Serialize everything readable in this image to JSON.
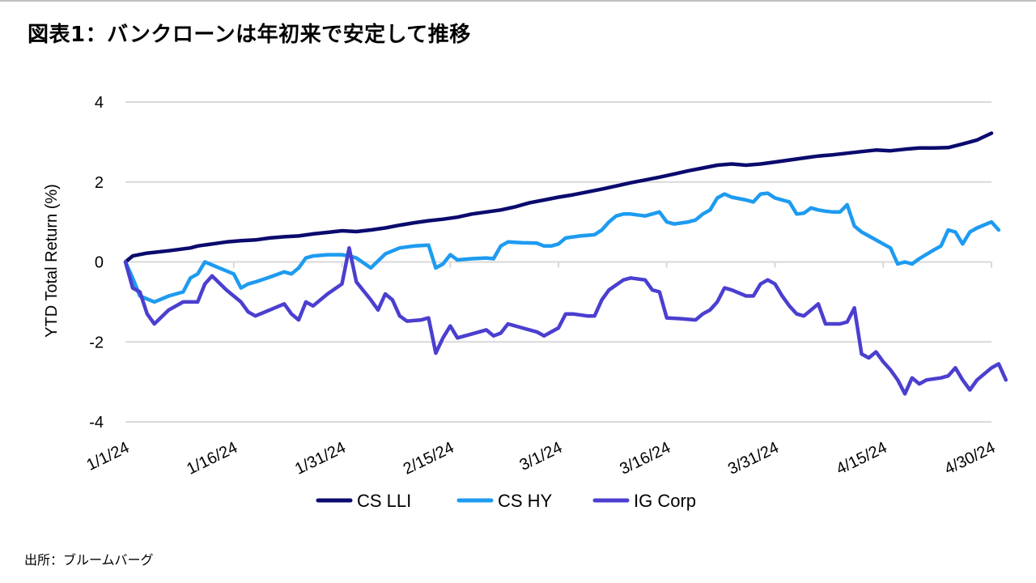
{
  "title": "図表1：バンクローンは年初来で安定して推移",
  "source": "出所：ブルームバーグ",
  "chart_data": {
    "type": "line",
    "ylabel": "YTD Total Return (%)",
    "xlabel": "",
    "ylim": [
      -4,
      4
    ],
    "yticks": [
      -4,
      -2,
      0,
      2,
      4
    ],
    "xlim": [
      0,
      120
    ],
    "xticks": [
      {
        "x": 0,
        "label": "1/1/24"
      },
      {
        "x": 15,
        "label": "1/16/24"
      },
      {
        "x": 30,
        "label": "1/31/24"
      },
      {
        "x": 45,
        "label": "2/15/24"
      },
      {
        "x": 60,
        "label": "3/1/24"
      },
      {
        "x": 75,
        "label": "3/16/24"
      },
      {
        "x": 90,
        "label": "3/31/24"
      },
      {
        "x": 105,
        "label": "4/15/24"
      },
      {
        "x": 120,
        "label": "4/30/24"
      }
    ],
    "grid": true,
    "legend_position": "bottom",
    "series": [
      {
        "name": "CS LLI",
        "color": "#0a0a6e",
        "points": [
          [
            0,
            0
          ],
          [
            1,
            0.15
          ],
          [
            3,
            0.22
          ],
          [
            6,
            0.28
          ],
          [
            9,
            0.35
          ],
          [
            10,
            0.4
          ],
          [
            12,
            0.45
          ],
          [
            14,
            0.5
          ],
          [
            16,
            0.53
          ],
          [
            18,
            0.55
          ],
          [
            20,
            0.6
          ],
          [
            22,
            0.63
          ],
          [
            24,
            0.65
          ],
          [
            26,
            0.7
          ],
          [
            28,
            0.74
          ],
          [
            30,
            0.78
          ],
          [
            32,
            0.76
          ],
          [
            34,
            0.8
          ],
          [
            36,
            0.85
          ],
          [
            38,
            0.92
          ],
          [
            40,
            0.98
          ],
          [
            42,
            1.03
          ],
          [
            44,
            1.07
          ],
          [
            46,
            1.12
          ],
          [
            48,
            1.2
          ],
          [
            50,
            1.25
          ],
          [
            52,
            1.3
          ],
          [
            54,
            1.38
          ],
          [
            56,
            1.48
          ],
          [
            58,
            1.55
          ],
          [
            60,
            1.62
          ],
          [
            62,
            1.68
          ],
          [
            64,
            1.75
          ],
          [
            66,
            1.82
          ],
          [
            68,
            1.9
          ],
          [
            70,
            1.98
          ],
          [
            72,
            2.05
          ],
          [
            74,
            2.12
          ],
          [
            76,
            2.2
          ],
          [
            78,
            2.28
          ],
          [
            80,
            2.35
          ],
          [
            82,
            2.42
          ],
          [
            84,
            2.45
          ],
          [
            86,
            2.42
          ],
          [
            88,
            2.45
          ],
          [
            90,
            2.5
          ],
          [
            92,
            2.55
          ],
          [
            94,
            2.6
          ],
          [
            96,
            2.65
          ],
          [
            98,
            2.68
          ],
          [
            100,
            2.72
          ],
          [
            102,
            2.76
          ],
          [
            104,
            2.8
          ],
          [
            106,
            2.78
          ],
          [
            108,
            2.82
          ],
          [
            110,
            2.85
          ],
          [
            112,
            2.85
          ],
          [
            114,
            2.86
          ],
          [
            116,
            2.95
          ],
          [
            118,
            3.05
          ],
          [
            120,
            3.22
          ]
        ]
      },
      {
        "name": "CS HY",
        "color": "#1e9bf0",
        "points": [
          [
            0,
            0
          ],
          [
            1,
            -0.4
          ],
          [
            2,
            -0.85
          ],
          [
            4,
            -1.0
          ],
          [
            6,
            -0.85
          ],
          [
            8,
            -0.75
          ],
          [
            9,
            -0.4
          ],
          [
            10,
            -0.3
          ],
          [
            11,
            0.0
          ],
          [
            13,
            -0.15
          ],
          [
            15,
            -0.3
          ],
          [
            16,
            -0.65
          ],
          [
            17,
            -0.55
          ],
          [
            18,
            -0.5
          ],
          [
            20,
            -0.38
          ],
          [
            22,
            -0.25
          ],
          [
            23,
            -0.3
          ],
          [
            24,
            -0.15
          ],
          [
            25,
            0.1
          ],
          [
            26,
            0.15
          ],
          [
            28,
            0.18
          ],
          [
            30,
            0.18
          ],
          [
            31,
            0.15
          ],
          [
            32,
            0.1
          ],
          [
            34,
            -0.15
          ],
          [
            36,
            0.2
          ],
          [
            38,
            0.35
          ],
          [
            40,
            0.4
          ],
          [
            42,
            0.42
          ],
          [
            43,
            -0.15
          ],
          [
            44,
            -0.05
          ],
          [
            45,
            0.18
          ],
          [
            46,
            0.05
          ],
          [
            48,
            0.08
          ],
          [
            50,
            0.1
          ],
          [
            51,
            0.08
          ],
          [
            52,
            0.4
          ],
          [
            53,
            0.5
          ],
          [
            55,
            0.48
          ],
          [
            57,
            0.47
          ],
          [
            58,
            0.4
          ],
          [
            59,
            0.4
          ],
          [
            60,
            0.45
          ],
          [
            61,
            0.6
          ],
          [
            63,
            0.65
          ],
          [
            65,
            0.68
          ],
          [
            66,
            0.8
          ],
          [
            67,
            1.0
          ],
          [
            68,
            1.15
          ],
          [
            69,
            1.2
          ],
          [
            70,
            1.2
          ],
          [
            72,
            1.15
          ],
          [
            74,
            1.25
          ],
          [
            75,
            1.0
          ],
          [
            76,
            0.95
          ],
          [
            78,
            1.0
          ],
          [
            79,
            1.05
          ],
          [
            80,
            1.2
          ],
          [
            81,
            1.3
          ],
          [
            82,
            1.6
          ],
          [
            83,
            1.7
          ],
          [
            84,
            1.62
          ],
          [
            86,
            1.55
          ],
          [
            87,
            1.5
          ],
          [
            88,
            1.7
          ],
          [
            89,
            1.72
          ],
          [
            90,
            1.6
          ],
          [
            92,
            1.5
          ],
          [
            93,
            1.2
          ],
          [
            94,
            1.22
          ],
          [
            95,
            1.35
          ],
          [
            96,
            1.3
          ],
          [
            97,
            1.27
          ],
          [
            98,
            1.25
          ],
          [
            99,
            1.25
          ],
          [
            100,
            1.43
          ],
          [
            101,
            0.9
          ],
          [
            102,
            0.75
          ],
          [
            103,
            0.65
          ],
          [
            105,
            0.45
          ],
          [
            106,
            0.35
          ],
          [
            107,
            -0.05
          ],
          [
            108,
            0.0
          ],
          [
            109,
            -0.05
          ],
          [
            110,
            0.08
          ],
          [
            112,
            0.3
          ],
          [
            113,
            0.4
          ],
          [
            114,
            0.8
          ],
          [
            115,
            0.75
          ],
          [
            116,
            0.45
          ],
          [
            117,
            0.75
          ],
          [
            118,
            0.85
          ],
          [
            120,
            1.0
          ],
          [
            121,
            0.8
          ]
        ]
      },
      {
        "name": "IG Corp",
        "color": "#4b3fd0",
        "points": [
          [
            0,
            0
          ],
          [
            1,
            -0.65
          ],
          [
            2,
            -0.75
          ],
          [
            3,
            -1.3
          ],
          [
            4,
            -1.55
          ],
          [
            6,
            -1.2
          ],
          [
            8,
            -1.0
          ],
          [
            10,
            -1.0
          ],
          [
            11,
            -0.55
          ],
          [
            12,
            -0.35
          ],
          [
            14,
            -0.7
          ],
          [
            16,
            -1.0
          ],
          [
            17,
            -1.25
          ],
          [
            18,
            -1.35
          ],
          [
            20,
            -1.2
          ],
          [
            22,
            -1.05
          ],
          [
            23,
            -1.3
          ],
          [
            24,
            -1.45
          ],
          [
            25,
            -1.0
          ],
          [
            26,
            -1.1
          ],
          [
            28,
            -0.8
          ],
          [
            30,
            -0.55
          ],
          [
            31,
            0.35
          ],
          [
            32,
            -0.5
          ],
          [
            34,
            -0.95
          ],
          [
            35,
            -1.2
          ],
          [
            36,
            -0.8
          ],
          [
            37,
            -0.95
          ],
          [
            38,
            -1.35
          ],
          [
            39,
            -1.48
          ],
          [
            41,
            -1.45
          ],
          [
            42,
            -1.4
          ],
          [
            43,
            -2.28
          ],
          [
            44,
            -1.9
          ],
          [
            45,
            -1.6
          ],
          [
            46,
            -1.9
          ],
          [
            48,
            -1.8
          ],
          [
            50,
            -1.7
          ],
          [
            51,
            -1.85
          ],
          [
            52,
            -1.78
          ],
          [
            53,
            -1.55
          ],
          [
            55,
            -1.65
          ],
          [
            57,
            -1.75
          ],
          [
            58,
            -1.85
          ],
          [
            59,
            -1.75
          ],
          [
            60,
            -1.65
          ],
          [
            61,
            -1.3
          ],
          [
            62,
            -1.3
          ],
          [
            64,
            -1.35
          ],
          [
            65,
            -1.35
          ],
          [
            66,
            -0.95
          ],
          [
            67,
            -0.7
          ],
          [
            69,
            -0.45
          ],
          [
            70,
            -0.4
          ],
          [
            72,
            -0.45
          ],
          [
            73,
            -0.7
          ],
          [
            74,
            -0.75
          ],
          [
            75,
            -1.4
          ],
          [
            77,
            -1.42
          ],
          [
            79,
            -1.45
          ],
          [
            80,
            -1.3
          ],
          [
            81,
            -1.2
          ],
          [
            82,
            -1.0
          ],
          [
            83,
            -0.65
          ],
          [
            84,
            -0.7
          ],
          [
            86,
            -0.85
          ],
          [
            87,
            -0.85
          ],
          [
            88,
            -0.55
          ],
          [
            89,
            -0.45
          ],
          [
            90,
            -0.55
          ],
          [
            91,
            -0.85
          ],
          [
            92,
            -1.1
          ],
          [
            93,
            -1.3
          ],
          [
            94,
            -1.35
          ],
          [
            95,
            -1.2
          ],
          [
            96,
            -1.05
          ],
          [
            97,
            -1.55
          ],
          [
            99,
            -1.55
          ],
          [
            100,
            -1.5
          ],
          [
            101,
            -1.15
          ],
          [
            102,
            -2.3
          ],
          [
            103,
            -2.4
          ],
          [
            104,
            -2.25
          ],
          [
            105,
            -2.5
          ],
          [
            106,
            -2.7
          ],
          [
            107,
            -2.95
          ],
          [
            108,
            -3.3
          ],
          [
            109,
            -2.9
          ],
          [
            110,
            -3.05
          ],
          [
            111,
            -2.95
          ],
          [
            113,
            -2.9
          ],
          [
            114,
            -2.85
          ],
          [
            115,
            -2.65
          ],
          [
            116,
            -2.95
          ],
          [
            117,
            -3.2
          ],
          [
            118,
            -2.95
          ],
          [
            120,
            -2.65
          ],
          [
            121,
            -2.55
          ],
          [
            122,
            -2.95
          ]
        ]
      }
    ]
  }
}
